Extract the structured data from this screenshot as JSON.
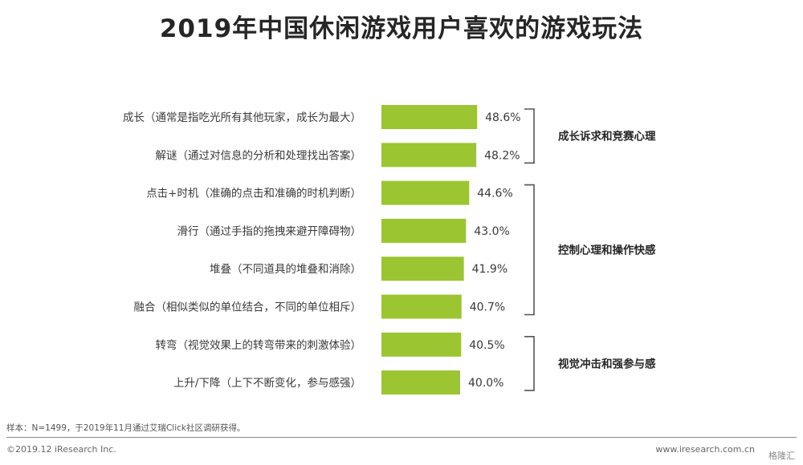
{
  "title": "2019年中国休闲游戏用户喜欢的游戏玩法",
  "chart_data": {
    "type": "bar",
    "orientation": "horizontal",
    "categories": [
      "成长（通常是指吃光所有其他玩家，成长为最大）",
      "解谜（通过对信息的分析和处理找出答案）",
      "点击+时机（准确的点击和准确的时机判断）",
      "滑行（通过手指的拖拽来避开障碍物）",
      "堆叠（不同道具的堆叠和消除）",
      "融合（相似类似的单位结合，不同的单位相斥）",
      "转弯（视觉效果上的转弯带来的刺激体验）",
      "上升/下降（上下不断变化，参与感强）"
    ],
    "values": [
      48.6,
      48.2,
      44.6,
      43.0,
      41.9,
      40.7,
      40.5,
      40.0
    ],
    "value_labels": [
      "48.6%",
      "48.2%",
      "44.6%",
      "43.0%",
      "41.9%",
      "40.7%",
      "40.5%",
      "40.0%"
    ],
    "groups": [
      {
        "label": "成长诉求和竞赛心理",
        "first": 0,
        "last": 1
      },
      {
        "label": "控制心理和操作快感",
        "first": 2,
        "last": 5
      },
      {
        "label": "视觉冲击和强参与感",
        "first": 6,
        "last": 7
      }
    ],
    "bar_color": "#9bc531",
    "grid": false
  },
  "footer": {
    "source": "样本：N=1499，于2019年11月通过艾瑞Click社区调研获得。",
    "copyright": "©2019.12 iResearch Inc.",
    "website": "www.iresearch.com.cn",
    "watermark": "格隆汇"
  }
}
